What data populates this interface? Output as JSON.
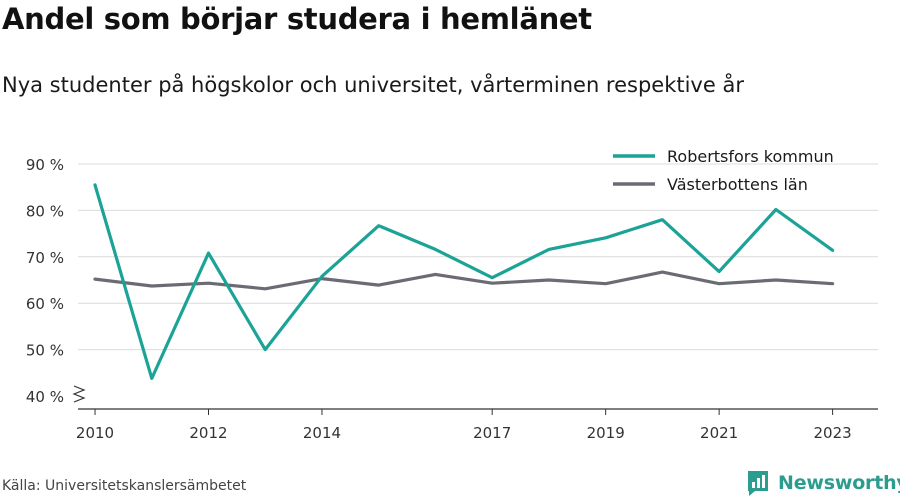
{
  "title": "Andel som börjar studera i hemlänet",
  "subtitle": "Nya studenter på högskolor och universitet, vårterminen respektive år",
  "source": "Källa: Universitetskanslersämbetet",
  "brand": {
    "name": "Newsworthy",
    "icon": "newsworthy-logo-icon",
    "color": "#2a9d8f"
  },
  "chart_data": {
    "type": "line",
    "x": [
      2010,
      2011,
      2012,
      2013,
      2014,
      2015,
      2016,
      2017,
      2018,
      2019,
      2020,
      2021,
      2022,
      2023
    ],
    "x_tick_labels": [
      "2010",
      "2012",
      "2014",
      "2017",
      "2019",
      "2021",
      "2023"
    ],
    "x_tick_values": [
      2010,
      2012,
      2014,
      2017,
      2019,
      2021,
      2023
    ],
    "y_tick_labels": [
      "40 %",
      "50 %",
      "60 %",
      "70 %",
      "80 %",
      "90 %"
    ],
    "y_tick_values": [
      40,
      50,
      60,
      70,
      80,
      90
    ],
    "ylim": [
      40,
      90
    ],
    "y_axis_break": true,
    "grid": true,
    "legend_position": "top-right",
    "series": [
      {
        "name": "Robertsfors kommun",
        "color": "#1aa396",
        "values": [
          85.5,
          43.8,
          70.8,
          50.0,
          65.8,
          76.7,
          71.6,
          65.5,
          71.6,
          74.1,
          78.0,
          66.8,
          80.2,
          71.4
        ]
      },
      {
        "name": "Västerbottens län",
        "color": "#6b6b74",
        "values": [
          65.2,
          63.7,
          64.3,
          63.1,
          65.3,
          63.9,
          66.2,
          64.3,
          65.0,
          64.2,
          66.7,
          64.2,
          65.0,
          64.2
        ]
      }
    ]
  }
}
